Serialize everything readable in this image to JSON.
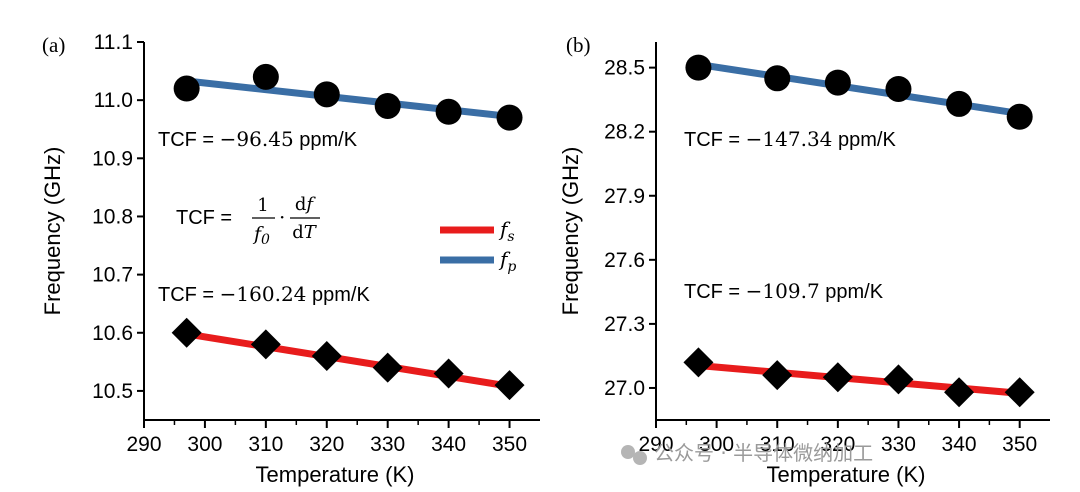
{
  "chart_data": [
    {
      "type": "line",
      "panel_label": "(a)",
      "xlabel": "Temperature (K)",
      "ylabel": "Frequency (GHz)",
      "xlim": [
        290,
        355
      ],
      "ylim": [
        10.45,
        11.1
      ],
      "xticks": [
        290,
        300,
        310,
        320,
        330,
        340,
        350
      ],
      "yticks": [
        10.5,
        10.6,
        10.7,
        10.8,
        10.9,
        11.0,
        11.1
      ],
      "ytick_labels": [
        "10.5",
        "10.6",
        "10.7",
        "10.8",
        "10.9",
        "11.0",
        "11.1"
      ],
      "series": [
        {
          "name": "fp",
          "color": "#3a6ea5",
          "marker": "circle",
          "x": [
            297,
            310,
            320,
            330,
            340,
            350
          ],
          "values": [
            11.02,
            11.04,
            11.01,
            10.99,
            10.98,
            10.97
          ],
          "fit": [
            [
              297,
              11.033
            ],
            [
              350,
              10.972
            ]
          ]
        },
        {
          "name": "fs",
          "color": "#e81c1c",
          "marker": "diamond",
          "x": [
            297,
            310,
            320,
            330,
            340,
            350
          ],
          "values": [
            10.6,
            10.58,
            10.56,
            10.54,
            10.53,
            10.51
          ],
          "fit": [
            [
              297,
              10.598
            ],
            [
              350,
              10.508
            ]
          ]
        }
      ],
      "annotations": {
        "tcf_fp": {
          "prefix": "TCF = ",
          "value": "−96.45",
          "unit": " ppm/K"
        },
        "tcf_fs": {
          "prefix": "TCF = ",
          "value": "−160.24",
          "unit": " ppm/K"
        },
        "formula": {
          "lhs": "TCF = ",
          "num": "1",
          "den": "f",
          "den_sub": "0",
          "dot": "·",
          "dnum": "d",
          "dnum_var": "f",
          "dden": "d",
          "dden_var": "T"
        }
      },
      "legend": {
        "placement": "right",
        "entries": [
          {
            "label": "f",
            "sub": "s",
            "color": "#e81c1c"
          },
          {
            "label": "f",
            "sub": "p",
            "color": "#3a6ea5"
          }
        ]
      }
    },
    {
      "type": "line",
      "panel_label": "(b)",
      "xlabel": "Temperature (K)",
      "ylabel": "Frequency (GHz)",
      "xlim": [
        290,
        355
      ],
      "ylim": [
        26.85,
        28.62
      ],
      "xticks": [
        290,
        300,
        310,
        320,
        330,
        340,
        350
      ],
      "yticks": [
        27.0,
        27.3,
        27.6,
        27.9,
        28.2,
        28.5
      ],
      "ytick_labels": [
        "27.0",
        "27.3",
        "27.6",
        "27.9",
        "28.2",
        "28.5"
      ],
      "series": [
        {
          "name": "fp",
          "color": "#3a6ea5",
          "marker": "circle",
          "x": [
            297,
            310,
            320,
            330,
            340,
            350
          ],
          "values": [
            28.5,
            28.45,
            28.43,
            28.4,
            28.33,
            28.27
          ],
          "fit": [
            [
              297,
              28.515
            ],
            [
              350,
              28.285
            ]
          ]
        },
        {
          "name": "fs",
          "color": "#e81c1c",
          "marker": "diamond",
          "x": [
            297,
            310,
            320,
            330,
            340,
            350
          ],
          "values": [
            27.12,
            27.06,
            27.05,
            27.04,
            26.98,
            26.98
          ],
          "fit": [
            [
              297,
              27.105
            ],
            [
              350,
              26.975
            ]
          ]
        }
      ],
      "annotations": {
        "tcf_fp": {
          "prefix": "TCF = ",
          "value": "−147.34",
          "unit": " ppm/K"
        },
        "tcf_fs": {
          "prefix": "TCF = ",
          "value": "−109.7",
          "unit": " ppm/K"
        }
      }
    }
  ],
  "watermark": {
    "text": "公众号 · 半导体微纳加工"
  }
}
